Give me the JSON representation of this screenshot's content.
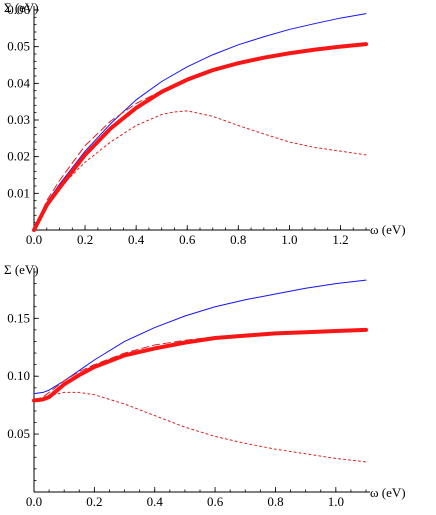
{
  "chart_data": [
    {
      "type": "line",
      "xlabel": "ω (eV)",
      "ylabel": "Σ (eV)",
      "xlim": [
        0,
        1.3
      ],
      "ylim": [
        0,
        0.06
      ],
      "xticks": [
        0.0,
        0.2,
        0.4,
        0.6,
        0.8,
        1.0,
        1.2
      ],
      "xtick_labels": [
        "0.0",
        "0.2",
        "0.4",
        "0.6",
        "0.8",
        "1.0",
        "1.2"
      ],
      "yticks": [
        0.01,
        0.02,
        0.03,
        0.04,
        0.05,
        0.06
      ],
      "ytick_labels": [
        "0.01",
        "0.02",
        "0.03",
        "0.04",
        "0.05",
        "0.06"
      ],
      "grid": false,
      "series": [
        {
          "color": "#1414ff",
          "style": "solid",
          "width": 1,
          "points": [
            [
              0,
              0
            ],
            [
              0.05,
              0.0075
            ],
            [
              0.1,
              0.0125
            ],
            [
              0.2,
              0.0215
            ],
            [
              0.3,
              0.029
            ],
            [
              0.4,
              0.0355
            ],
            [
              0.5,
              0.0405
            ],
            [
              0.6,
              0.0445
            ],
            [
              0.7,
              0.0478
            ],
            [
              0.8,
              0.0505
            ],
            [
              0.9,
              0.0527
            ],
            [
              1.0,
              0.0547
            ],
            [
              1.1,
              0.0563
            ],
            [
              1.2,
              0.0578
            ],
            [
              1.3,
              0.059
            ]
          ]
        },
        {
          "color": "#ff1414",
          "style": "solid",
          "width": 4,
          "points": [
            [
              0,
              0
            ],
            [
              0.05,
              0.0068
            ],
            [
              0.1,
              0.0115
            ],
            [
              0.2,
              0.0205
            ],
            [
              0.3,
              0.0277
            ],
            [
              0.4,
              0.0333
            ],
            [
              0.5,
              0.0377
            ],
            [
              0.6,
              0.041
            ],
            [
              0.7,
              0.0436
            ],
            [
              0.8,
              0.0455
            ],
            [
              0.9,
              0.047
            ],
            [
              1.0,
              0.0482
            ],
            [
              1.1,
              0.0492
            ],
            [
              1.2,
              0.05
            ],
            [
              1.3,
              0.0507
            ]
          ]
        },
        {
          "color": "#dd2020",
          "style": "dashed",
          "width": 1,
          "points": [
            [
              0,
              0
            ],
            [
              0.05,
              0.008
            ],
            [
              0.1,
              0.0135
            ],
            [
              0.2,
              0.023
            ],
            [
              0.3,
              0.0297
            ],
            [
              0.4,
              0.0345
            ],
            [
              0.5,
              0.038
            ],
            [
              0.6,
              0.041
            ],
            [
              0.7,
              0.0435
            ],
            [
              0.8,
              0.0455
            ],
            [
              0.9,
              0.047
            ],
            [
              1.0,
              0.0482
            ],
            [
              1.1,
              0.0492
            ],
            [
              1.2,
              0.0502
            ],
            [
              1.3,
              0.051
            ]
          ]
        },
        {
          "color": "#dd2020",
          "style": "dotted",
          "width": 1,
          "points": [
            [
              0,
              0
            ],
            [
              0.05,
              0.0065
            ],
            [
              0.1,
              0.0115
            ],
            [
              0.2,
              0.0185
            ],
            [
              0.3,
              0.024
            ],
            [
              0.4,
              0.0285
            ],
            [
              0.5,
              0.0315
            ],
            [
              0.55,
              0.0322
            ],
            [
              0.6,
              0.0325
            ],
            [
              0.7,
              0.031
            ],
            [
              0.8,
              0.0285
            ],
            [
              0.9,
              0.0262
            ],
            [
              1.0,
              0.024
            ],
            [
              1.1,
              0.0225
            ],
            [
              1.2,
              0.0215
            ],
            [
              1.3,
              0.0205
            ]
          ]
        }
      ]
    },
    {
      "type": "line",
      "xlabel": "ω (eV)",
      "ylabel": "Σ (eV)",
      "xlim": [
        0,
        1.1
      ],
      "ylim": [
        0.0,
        0.19
      ],
      "xticks": [
        0.0,
        0.2,
        0.4,
        0.6,
        0.8,
        1.0
      ],
      "xtick_labels": [
        "0.0",
        "0.2",
        "0.4",
        "0.6",
        "0.8",
        "1.0"
      ],
      "yticks": [
        0.05,
        0.1,
        0.15
      ],
      "ytick_labels": [
        "0.05",
        "0.10",
        "0.15"
      ],
      "grid": false,
      "series": [
        {
          "color": "#1414ff",
          "style": "solid",
          "width": 1,
          "points": [
            [
              0,
              0.085
            ],
            [
              0.03,
              0.086
            ],
            [
              0.05,
              0.088
            ],
            [
              0.1,
              0.096
            ],
            [
              0.15,
              0.105
            ],
            [
              0.2,
              0.114
            ],
            [
              0.3,
              0.13
            ],
            [
              0.4,
              0.142
            ],
            [
              0.5,
              0.152
            ],
            [
              0.6,
              0.16
            ],
            [
              0.7,
              0.166
            ],
            [
              0.8,
              0.171
            ],
            [
              0.9,
              0.176
            ],
            [
              1.0,
              0.18
            ],
            [
              1.1,
              0.183
            ]
          ]
        },
        {
          "color": "#ff1414",
          "style": "solid",
          "width": 4,
          "points": [
            [
              0,
              0.079
            ],
            [
              0.03,
              0.08
            ],
            [
              0.05,
              0.082
            ],
            [
              0.1,
              0.093
            ],
            [
              0.15,
              0.101
            ],
            [
              0.2,
              0.108
            ],
            [
              0.3,
              0.118
            ],
            [
              0.4,
              0.124
            ],
            [
              0.5,
              0.129
            ],
            [
              0.6,
              0.133
            ],
            [
              0.7,
              0.135
            ],
            [
              0.8,
              0.137
            ],
            [
              0.9,
              0.138
            ],
            [
              1.0,
              0.139
            ],
            [
              1.1,
              0.14
            ]
          ]
        },
        {
          "color": "#dd2020",
          "style": "dashed",
          "width": 1,
          "points": [
            [
              0,
              0.079
            ],
            [
              0.03,
              0.082
            ],
            [
              0.05,
              0.086
            ],
            [
              0.1,
              0.096
            ],
            [
              0.15,
              0.104
            ],
            [
              0.2,
              0.11
            ],
            [
              0.3,
              0.12
            ],
            [
              0.4,
              0.127
            ],
            [
              0.5,
              0.131
            ],
            [
              0.6,
              0.134
            ],
            [
              0.7,
              0.136
            ],
            [
              0.8,
              0.137
            ],
            [
              0.9,
              0.138
            ],
            [
              1.0,
              0.139
            ],
            [
              1.1,
              0.14
            ]
          ]
        },
        {
          "color": "#dd2020",
          "style": "dotted",
          "width": 1,
          "points": [
            [
              0,
              0.079
            ],
            [
              0.05,
              0.083
            ],
            [
              0.1,
              0.086
            ],
            [
              0.15,
              0.086
            ],
            [
              0.2,
              0.084
            ],
            [
              0.3,
              0.076
            ],
            [
              0.4,
              0.066
            ],
            [
              0.5,
              0.056
            ],
            [
              0.6,
              0.048
            ],
            [
              0.7,
              0.042
            ],
            [
              0.8,
              0.037
            ],
            [
              0.9,
              0.033
            ],
            [
              1.0,
              0.029
            ],
            [
              1.1,
              0.026
            ]
          ]
        }
      ]
    }
  ]
}
